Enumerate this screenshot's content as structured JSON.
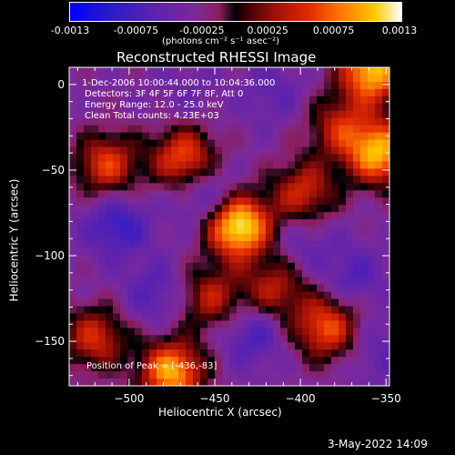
{
  "colorbar": {
    "ticks": [
      "-0.0013",
      "-0.00075",
      "-0.00025",
      "0.00025",
      "0.00075",
      "0.0013"
    ],
    "unit": "(photons cm⁻² s⁻¹ asec⁻²)"
  },
  "annotations": {
    "time": "1-Dec-2006 10:00:44.000 to 10:04:36.000",
    "detectors": "Detectors: 3F 4F 5F 6F 7F 8F, Att 0",
    "energy": "Energy Range: 12.0 - 25.0 keV",
    "clean": "Clean     Total counts: 4.23E+03",
    "peak": "Position of Peak = [-436,-83]"
  },
  "timestamp": "3-May-2022 14:09",
  "chart_data": {
    "type": "heatmap",
    "title": "Reconstructed RHESSI Image",
    "xlabel": "Heliocentric X (arcsec)",
    "ylabel": "Heliocentric Y (arcsec)",
    "xlim": [
      -535,
      -348
    ],
    "ylim": [
      -176,
      10
    ],
    "xticks": [
      -500,
      -450,
      -400,
      -350
    ],
    "yticks": [
      0,
      -50,
      -100,
      -150
    ],
    "color_range": [
      -0.0013,
      0.0013
    ],
    "peak": [
      -436,
      -83
    ],
    "sources": [
      {
        "x": -436,
        "y": -83,
        "value": 0.0013
      },
      {
        "x": -358,
        "y": 8,
        "value": 0.0011
      },
      {
        "x": -354,
        "y": -40,
        "value": 0.001
      },
      {
        "x": -475,
        "y": -168,
        "value": 0.001
      },
      {
        "x": -385,
        "y": -142,
        "value": 0.0007
      },
      {
        "x": -468,
        "y": -43,
        "value": 0.0007
      },
      {
        "x": -513,
        "y": -47,
        "value": 0.0006
      },
      {
        "x": -398,
        "y": -63,
        "value": 0.0005
      },
      {
        "x": -520,
        "y": -148,
        "value": 0.0005
      },
      {
        "x": -415,
        "y": -120,
        "value": 0.0004
      },
      {
        "x": -452,
        "y": -125,
        "value": 0.0004
      },
      {
        "x": -377,
        "y": -25,
        "value": 0.0004
      }
    ],
    "negative_sources": [
      {
        "x": -507,
        "y": -82,
        "value": -0.0009
      },
      {
        "x": -455,
        "y": -65,
        "value": -0.0008
      },
      {
        "x": -428,
        "y": -145,
        "value": -0.0008
      },
      {
        "x": -485,
        "y": -122,
        "value": -0.0007
      },
      {
        "x": -369,
        "y": -112,
        "value": -0.0007
      },
      {
        "x": -416,
        "y": -5,
        "value": -0.0006
      },
      {
        "x": -467,
        "y": -5,
        "value": -0.0005
      },
      {
        "x": -398,
        "y": -92,
        "value": -0.0006
      },
      {
        "x": -355,
        "y": -156,
        "value": -0.0006
      }
    ]
  }
}
